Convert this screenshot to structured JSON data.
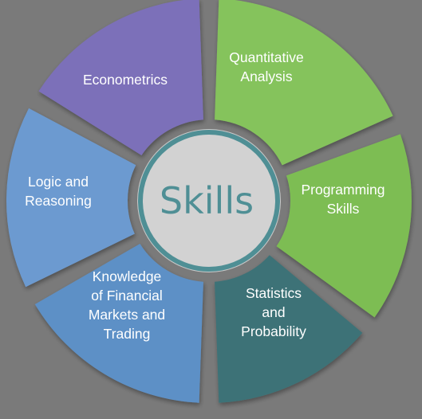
{
  "center": {
    "title": "Skills",
    "ring_color": "#4f8f95",
    "fill_color": "#d2d2d2"
  },
  "background_color": "#7a7a7a",
  "segments": [
    {
      "id": "econometrics",
      "lines": [
        "Econometrics"
      ],
      "color": "#7c6fb9"
    },
    {
      "id": "quantitative-analysis",
      "lines": [
        "Quantitative",
        "Analysis"
      ],
      "color": "#85c35b"
    },
    {
      "id": "programming-skills",
      "lines": [
        "Programming",
        "Skills"
      ],
      "color": "#7dbd52"
    },
    {
      "id": "statistics-and-probability",
      "lines": [
        "Statistics",
        "and",
        "Probability"
      ],
      "color": "#3d7277"
    },
    {
      "id": "knowledge-of-financial-markets",
      "lines": [
        "Knowledge",
        "of Financial",
        "Markets and",
        "Trading"
      ],
      "color": "#5d90c6"
    },
    {
      "id": "logic-and-reasoning",
      "lines": [
        "Logic and",
        "Reasoning"
      ],
      "color": "#6c9ad0"
    }
  ]
}
